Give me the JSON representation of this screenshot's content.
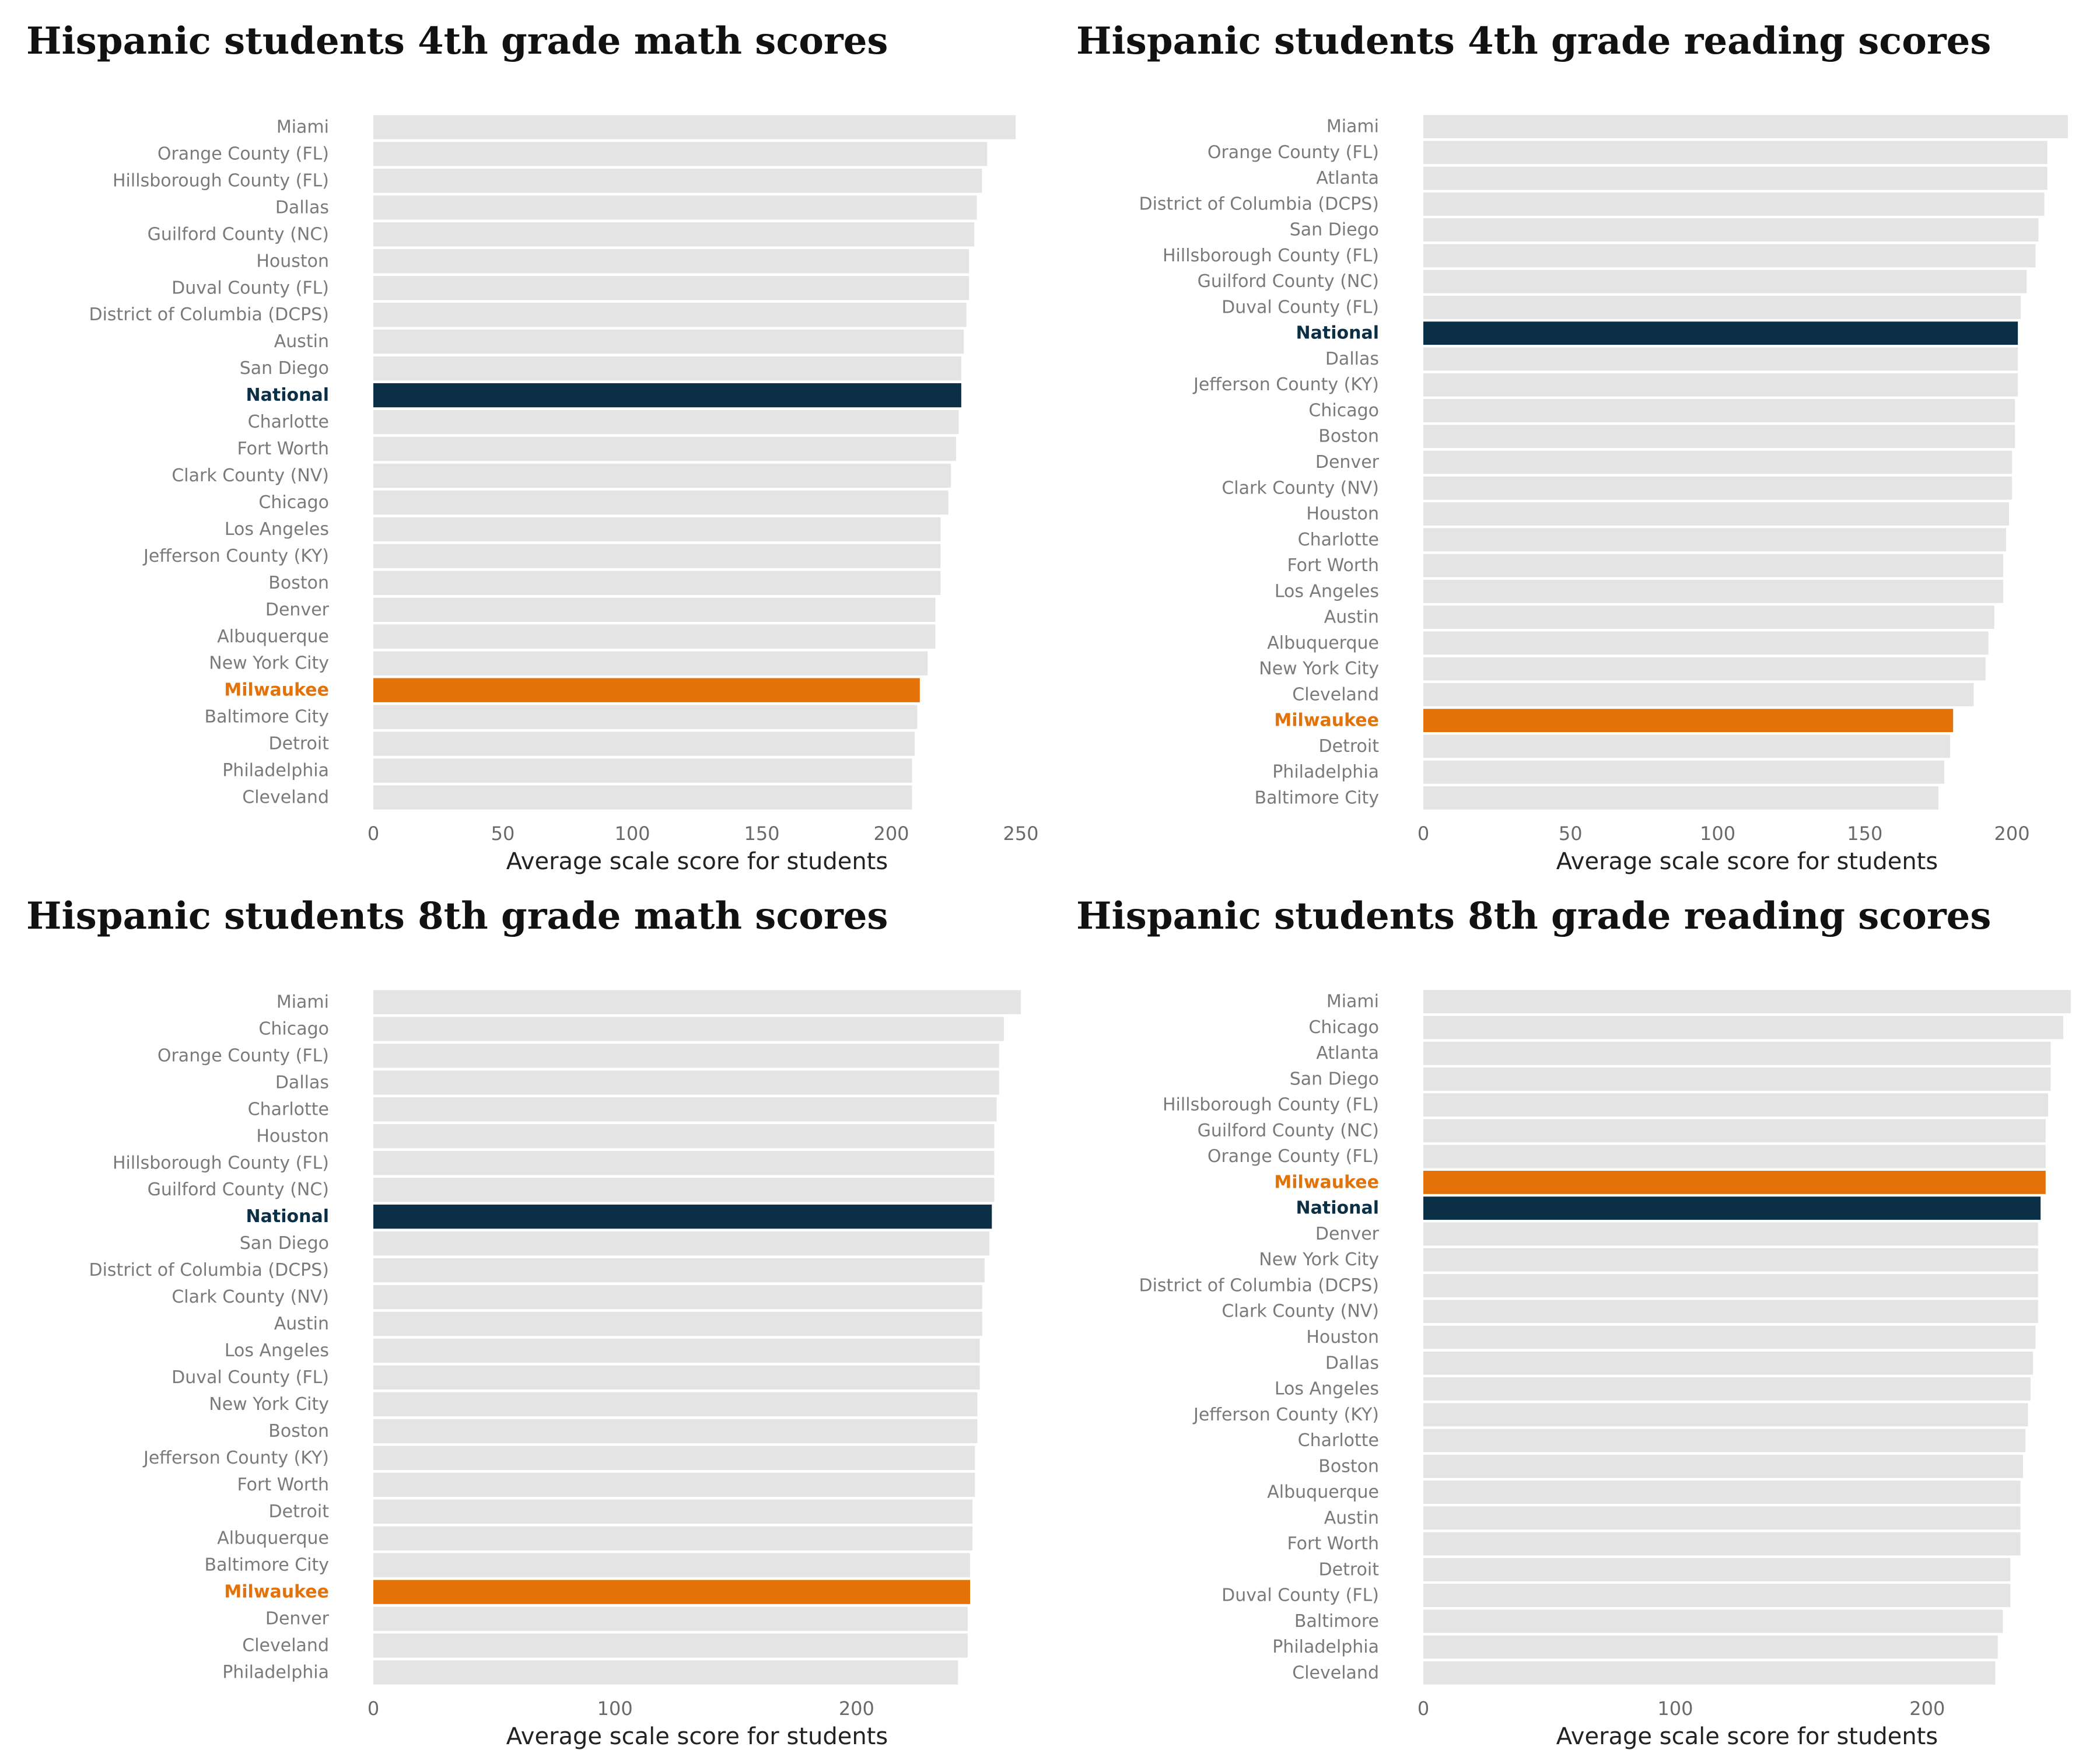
{
  "colors": {
    "bar": "#e4e4e4",
    "national": "#0b2f45",
    "milwaukee": "#e37208"
  },
  "chart_data": [
    {
      "type": "bar",
      "orientation": "horizontal",
      "title": "Hispanic students 4th grade math scores",
      "xlabel": "Average scale score for students",
      "xlim": [
        0,
        250
      ],
      "xticks": [
        0,
        50,
        100,
        150,
        200,
        250
      ],
      "highlight": {
        "National": "national",
        "Milwaukee": "milwaukee"
      },
      "categories": [
        "Miami",
        "Orange County (FL)",
        "Hillsborough County (FL)",
        "Dallas",
        "Guilford County (NC)",
        "Houston",
        "Duval County (FL)",
        "District of Columbia (DCPS)",
        "Austin",
        "San Diego",
        "National",
        "Charlotte",
        "Fort Worth",
        "Clark County (NV)",
        "Chicago",
        "Los Angeles",
        "Jefferson County (KY)",
        "Boston",
        "Denver",
        "Albuquerque",
        "New York City",
        "Milwaukee",
        "Baltimore City",
        "Detroit",
        "Philadelphia",
        "Cleveland"
      ],
      "values": [
        248,
        237,
        235,
        233,
        232,
        230,
        230,
        229,
        228,
        227,
        227,
        226,
        225,
        223,
        222,
        219,
        219,
        219,
        217,
        217,
        214,
        211,
        210,
        209,
        208,
        208
      ]
    },
    {
      "type": "bar",
      "orientation": "horizontal",
      "title": "Hispanic students 4th grade reading scores",
      "xlabel": "Average scale score for students",
      "xlim": [
        0,
        220
      ],
      "xticks": [
        0,
        50,
        100,
        150,
        200
      ],
      "highlight": {
        "National": "national",
        "Milwaukee": "milwaukee"
      },
      "categories": [
        "Miami",
        "Orange County (FL)",
        "Atlanta",
        "District of Columbia (DCPS)",
        "San Diego",
        "Hillsborough County (FL)",
        "Guilford County (NC)",
        "Duval County (FL)",
        "National",
        "Dallas",
        "Jefferson County (KY)",
        "Chicago",
        "Boston",
        "Denver",
        "Clark County (NV)",
        "Houston",
        "Charlotte",
        "Fort Worth",
        "Los Angeles",
        "Austin",
        "Albuquerque",
        "New York City",
        "Cleveland",
        "Milwaukee",
        "Detroit",
        "Philadelphia",
        "Baltimore City"
      ],
      "values": [
        219,
        212,
        212,
        211,
        209,
        208,
        205,
        203,
        202,
        202,
        202,
        201,
        201,
        200,
        200,
        199,
        198,
        197,
        197,
        194,
        192,
        191,
        187,
        180,
        179,
        177,
        175
      ]
    },
    {
      "type": "bar",
      "orientation": "horizontal",
      "title": "Hispanic students 8th grade math scores",
      "xlabel": "Average scale score for students",
      "xlim": [
        0,
        268
      ],
      "xticks": [
        0,
        100,
        200
      ],
      "highlight": {
        "National": "national",
        "Milwaukee": "milwaukee"
      },
      "categories": [
        "Miami",
        "Chicago",
        "Orange County (FL)",
        "Dallas",
        "Charlotte",
        "Houston",
        "Hillsborough County (FL)",
        "Guilford County (NC)",
        "National",
        "San Diego",
        "District of Columbia (DCPS)",
        "Clark County (NV)",
        "Austin",
        "Los Angeles",
        "Duval County (FL)",
        "New York City",
        "Boston",
        "Jefferson County (KY)",
        "Fort Worth",
        "Detroit",
        "Albuquerque",
        "Baltimore City",
        "Milwaukee",
        "Denver",
        "Cleveland",
        "Philadelphia"
      ],
      "values": [
        268,
        261,
        259,
        259,
        258,
        257,
        257,
        257,
        256,
        255,
        253,
        252,
        252,
        251,
        251,
        250,
        250,
        249,
        249,
        248,
        248,
        247,
        247,
        246,
        246,
        242
      ]
    },
    {
      "type": "bar",
      "orientation": "horizontal",
      "title": "Hispanic students 8th grade reading scores",
      "xlabel": "Average scale score for students",
      "xlim": [
        0,
        257
      ],
      "xticks": [
        0,
        100,
        200
      ],
      "highlight": {
        "National": "national",
        "Milwaukee": "milwaukee"
      },
      "categories": [
        "Miami",
        "Chicago",
        "Atlanta",
        "San Diego",
        "Hillsborough County (FL)",
        "Guilford County (NC)",
        "Orange County (FL)",
        "Milwaukee",
        "National",
        "Denver",
        "New York City",
        "District of Columbia (DCPS)",
        "Clark County (NV)",
        "Houston",
        "Dallas",
        "Los Angeles",
        "Jefferson County (KY)",
        "Charlotte",
        "Boston",
        "Albuquerque",
        "Austin",
        "Fort Worth",
        "Detroit",
        "Duval County (FL)",
        "Baltimore",
        "Philadelphia",
        "Cleveland"
      ],
      "values": [
        257,
        254,
        249,
        249,
        248,
        247,
        247,
        247,
        245,
        244,
        244,
        244,
        244,
        243,
        242,
        241,
        240,
        239,
        238,
        237,
        237,
        237,
        233,
        233,
        230,
        228,
        227
      ]
    }
  ]
}
